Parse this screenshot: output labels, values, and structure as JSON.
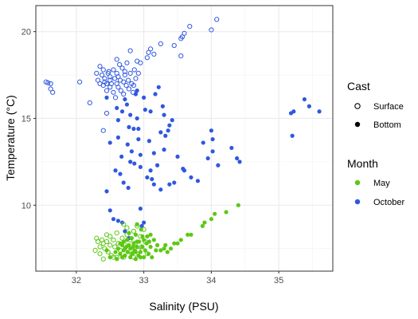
{
  "chart_data": {
    "type": "scatter",
    "xlabel": "Salinity (PSU)",
    "ylabel": "Temperature (°C)",
    "xlim": [
      31.4,
      35.8
    ],
    "ylim": [
      6.2,
      21.5
    ],
    "x_ticks": [
      32,
      33,
      34,
      35
    ],
    "y_ticks": [
      10,
      15,
      20
    ],
    "grid": true,
    "legend_position": "right",
    "colors": {
      "May": "#5cc814",
      "October": "#2f58e0"
    },
    "legend": {
      "cast": {
        "title": "Cast",
        "items": [
          "Surface",
          "Bottom"
        ]
      },
      "month": {
        "title": "Month",
        "items": [
          "May",
          "October"
        ]
      }
    },
    "series": [
      {
        "month": "October",
        "cast": "Surface",
        "points": [
          [
            31.55,
            17.1
          ],
          [
            31.58,
            17.05
          ],
          [
            31.62,
            17.0
          ],
          [
            31.65,
            16.5
          ],
          [
            31.62,
            16.7
          ],
          [
            32.05,
            17.1
          ],
          [
            32.2,
            15.9
          ],
          [
            32.3,
            17.6
          ],
          [
            32.32,
            17.2
          ],
          [
            32.35,
            17.0
          ],
          [
            32.38,
            17.5
          ],
          [
            32.4,
            16.9
          ],
          [
            32.4,
            17.8
          ],
          [
            32.42,
            17.3
          ],
          [
            32.45,
            16.6
          ],
          [
            32.45,
            17.0
          ],
          [
            32.47,
            17.6
          ],
          [
            32.5,
            17.2
          ],
          [
            32.5,
            16.8
          ],
          [
            32.5,
            17.4
          ],
          [
            32.52,
            17.0
          ],
          [
            32.55,
            16.5
          ],
          [
            32.55,
            17.8
          ],
          [
            32.57,
            17.3
          ],
          [
            32.58,
            16.2
          ],
          [
            32.6,
            17.6
          ],
          [
            32.6,
            17.0
          ],
          [
            32.62,
            16.8
          ],
          [
            32.62,
            17.4
          ],
          [
            32.64,
            18.1
          ],
          [
            32.65,
            17.2
          ],
          [
            32.66,
            16.6
          ],
          [
            32.68,
            17.9
          ],
          [
            32.7,
            17.1
          ],
          [
            32.7,
            16.4
          ],
          [
            32.72,
            17.5
          ],
          [
            32.74,
            16.9
          ],
          [
            32.75,
            18.2
          ],
          [
            32.77,
            17.2
          ],
          [
            32.78,
            16.7
          ],
          [
            32.8,
            17.6
          ],
          [
            32.82,
            17.0
          ],
          [
            32.84,
            16.5
          ],
          [
            32.86,
            17.8
          ],
          [
            32.88,
            17.3
          ],
          [
            32.9,
            18.3
          ],
          [
            32.72,
            17.7
          ],
          [
            32.6,
            18.4
          ],
          [
            32.48,
            17.7
          ],
          [
            32.42,
            17.1
          ],
          [
            32.85,
            16.9
          ],
          [
            32.92,
            17.6
          ],
          [
            32.95,
            18.2
          ],
          [
            33.05,
            18.5
          ],
          [
            33.07,
            18.8
          ],
          [
            33.1,
            19.0
          ],
          [
            33.15,
            18.7
          ],
          [
            33.25,
            19.3
          ],
          [
            33.45,
            19.2
          ],
          [
            33.55,
            19.6
          ],
          [
            33.6,
            19.9
          ],
          [
            33.57,
            19.7
          ],
          [
            33.68,
            20.3
          ],
          [
            33.55,
            18.6
          ],
          [
            34.0,
            20.1
          ],
          [
            34.08,
            20.7
          ],
          [
            32.45,
            15.3
          ],
          [
            32.4,
            14.3
          ],
          [
            32.8,
            18.9
          ],
          [
            32.35,
            18.0
          ]
        ]
      },
      {
        "month": "October",
        "cast": "Bottom",
        "points": [
          [
            32.45,
            10.8
          ],
          [
            32.5,
            9.7
          ],
          [
            32.55,
            9.2
          ],
          [
            32.62,
            9.1
          ],
          [
            32.68,
            9.0
          ],
          [
            32.72,
            8.5
          ],
          [
            32.78,
            8.1
          ],
          [
            32.62,
            14.9
          ],
          [
            32.62,
            13.9
          ],
          [
            32.58,
            12.0
          ],
          [
            32.65,
            11.8
          ],
          [
            32.7,
            11.3
          ],
          [
            32.67,
            12.8
          ],
          [
            32.75,
            15.8
          ],
          [
            32.8,
            15.2
          ],
          [
            32.76,
            13.5
          ],
          [
            32.78,
            14.5
          ],
          [
            32.8,
            12.5
          ],
          [
            32.77,
            11.0
          ],
          [
            32.85,
            14.4
          ],
          [
            32.88,
            16.4
          ],
          [
            32.9,
            15.0
          ],
          [
            32.92,
            13.8
          ],
          [
            32.95,
            12.2
          ],
          [
            32.95,
            9.8
          ],
          [
            32.97,
            8.8
          ],
          [
            33.0,
            9.0
          ],
          [
            33.05,
            11.6
          ],
          [
            33.1,
            12.0
          ],
          [
            33.08,
            13.7
          ],
          [
            33.12,
            11.5
          ],
          [
            33.15,
            11.2
          ],
          [
            33.2,
            12.3
          ],
          [
            33.3,
            13.2
          ],
          [
            33.25,
            14.2
          ],
          [
            33.3,
            15.2
          ],
          [
            33.38,
            14.6
          ],
          [
            33.42,
            14.9
          ],
          [
            33.5,
            12.8
          ],
          [
            33.58,
            12.1
          ],
          [
            33.6,
            12.0
          ],
          [
            33.7,
            11.6
          ],
          [
            33.8,
            11.4
          ],
          [
            33.88,
            13.6
          ],
          [
            33.95,
            12.7
          ],
          [
            34.02,
            13.1
          ],
          [
            34.1,
            12.3
          ],
          [
            34.3,
            13.3
          ],
          [
            34.38,
            12.7
          ],
          [
            34.42,
            12.5
          ],
          [
            33.25,
            10.9
          ],
          [
            33.38,
            11.2
          ],
          [
            33.45,
            11.3
          ],
          [
            32.45,
            16.2
          ],
          [
            32.5,
            13.6
          ],
          [
            32.6,
            15.6
          ],
          [
            32.68,
            15.4
          ],
          [
            32.72,
            16.1
          ],
          [
            32.82,
            13.1
          ],
          [
            32.86,
            12.4
          ],
          [
            32.9,
            16.6
          ],
          [
            32.92,
            14.4
          ],
          [
            33.0,
            16.2
          ],
          [
            33.02,
            15.5
          ],
          [
            33.1,
            15.4
          ],
          [
            33.17,
            16.4
          ],
          [
            33.22,
            16.8
          ],
          [
            33.28,
            15.7
          ],
          [
            33.32,
            14.0
          ],
          [
            33.36,
            14.3
          ],
          [
            35.18,
            15.3
          ],
          [
            35.22,
            15.4
          ],
          [
            35.2,
            14.0
          ],
          [
            35.38,
            16.1
          ],
          [
            35.45,
            15.7
          ],
          [
            35.6,
            15.4
          ],
          [
            34.0,
            14.3
          ],
          [
            34.02,
            13.8
          ],
          [
            33.15,
            13.0
          ],
          [
            32.95,
            12.9
          ]
        ]
      },
      {
        "month": "May",
        "cast": "Surface",
        "points": [
          [
            32.3,
            8.1
          ],
          [
            32.32,
            7.9
          ],
          [
            32.35,
            7.6
          ],
          [
            32.35,
            7.2
          ],
          [
            32.38,
            8.0
          ],
          [
            32.4,
            7.8
          ],
          [
            32.42,
            7.5
          ],
          [
            32.45,
            7.9
          ],
          [
            32.47,
            7.3
          ],
          [
            32.5,
            7.7
          ],
          [
            32.5,
            8.2
          ],
          [
            32.52,
            7.1
          ],
          [
            32.55,
            8.0
          ],
          [
            32.57,
            7.6
          ],
          [
            32.6,
            8.4
          ],
          [
            32.62,
            7.8
          ],
          [
            32.65,
            7.4
          ],
          [
            32.68,
            8.1
          ],
          [
            32.7,
            7.0
          ],
          [
            32.72,
            7.7
          ],
          [
            32.75,
            8.3
          ],
          [
            32.77,
            7.5
          ],
          [
            32.8,
            8.0
          ],
          [
            32.82,
            7.2
          ],
          [
            32.85,
            8.5
          ],
          [
            32.87,
            7.8
          ],
          [
            32.9,
            8.8
          ],
          [
            32.92,
            7.4
          ],
          [
            32.95,
            8.2
          ],
          [
            32.97,
            7.6
          ],
          [
            33.0,
            8.6
          ],
          [
            33.02,
            7.9
          ],
          [
            32.75,
            8.7
          ],
          [
            32.6,
            7.0
          ],
          [
            32.45,
            8.3
          ],
          [
            32.4,
            6.9
          ],
          [
            32.55,
            7.0
          ],
          [
            32.85,
            7.0
          ],
          [
            33.05,
            7.2
          ],
          [
            32.28,
            7.4
          ],
          [
            32.7,
            8.9
          ]
        ]
      },
      {
        "month": "May",
        "cast": "Bottom",
        "points": [
          [
            32.62,
            7.5
          ],
          [
            32.65,
            7.2
          ],
          [
            32.65,
            7.8
          ],
          [
            32.68,
            7.0
          ],
          [
            32.7,
            7.4
          ],
          [
            32.7,
            7.9
          ],
          [
            32.72,
            7.1
          ],
          [
            32.74,
            7.6
          ],
          [
            32.75,
            8.0
          ],
          [
            32.76,
            7.3
          ],
          [
            32.78,
            7.7
          ],
          [
            32.8,
            7.0
          ],
          [
            32.8,
            7.5
          ],
          [
            32.82,
            8.1
          ],
          [
            32.83,
            7.2
          ],
          [
            32.85,
            7.8
          ],
          [
            32.86,
            7.4
          ],
          [
            32.88,
            6.9
          ],
          [
            32.88,
            8.3
          ],
          [
            32.9,
            7.6
          ],
          [
            32.92,
            7.1
          ],
          [
            32.93,
            7.9
          ],
          [
            32.95,
            7.3
          ],
          [
            32.96,
            8.6
          ],
          [
            32.98,
            7.6
          ],
          [
            33.0,
            7.0
          ],
          [
            33.0,
            8.0
          ],
          [
            33.02,
            7.4
          ],
          [
            33.04,
            7.8
          ],
          [
            33.05,
            8.2
          ],
          [
            33.07,
            7.2
          ],
          [
            33.1,
            7.6
          ],
          [
            33.12,
            7.0
          ],
          [
            33.15,
            8.0
          ],
          [
            33.18,
            7.4
          ],
          [
            33.2,
            7.7
          ],
          [
            33.25,
            7.4
          ],
          [
            33.3,
            7.5
          ],
          [
            33.32,
            7.7
          ],
          [
            33.35,
            7.3
          ],
          [
            33.4,
            7.5
          ],
          [
            33.45,
            7.8
          ],
          [
            33.5,
            7.8
          ],
          [
            33.55,
            8.0
          ],
          [
            33.65,
            8.3
          ],
          [
            33.7,
            8.3
          ],
          [
            33.87,
            8.8
          ],
          [
            33.9,
            9.0
          ],
          [
            34.0,
            9.2
          ],
          [
            34.05,
            9.5
          ],
          [
            34.22,
            9.6
          ],
          [
            34.4,
            10.0
          ],
          [
            32.9,
            7.9
          ],
          [
            32.84,
            7.6
          ],
          [
            32.78,
            8.4
          ],
          [
            32.72,
            7.5
          ],
          [
            32.6,
            6.9
          ],
          [
            32.5,
            7.0
          ],
          [
            32.45,
            7.4
          ],
          [
            32.95,
            7.0
          ],
          [
            33.08,
            7.9
          ],
          [
            32.88,
            7.3
          ],
          [
            32.9,
            8.9
          ],
          [
            32.68,
            7.7
          ],
          [
            32.98,
            8.2
          ],
          [
            33.1,
            8.3
          ],
          [
            32.58,
            7.3
          ]
        ]
      }
    ]
  }
}
